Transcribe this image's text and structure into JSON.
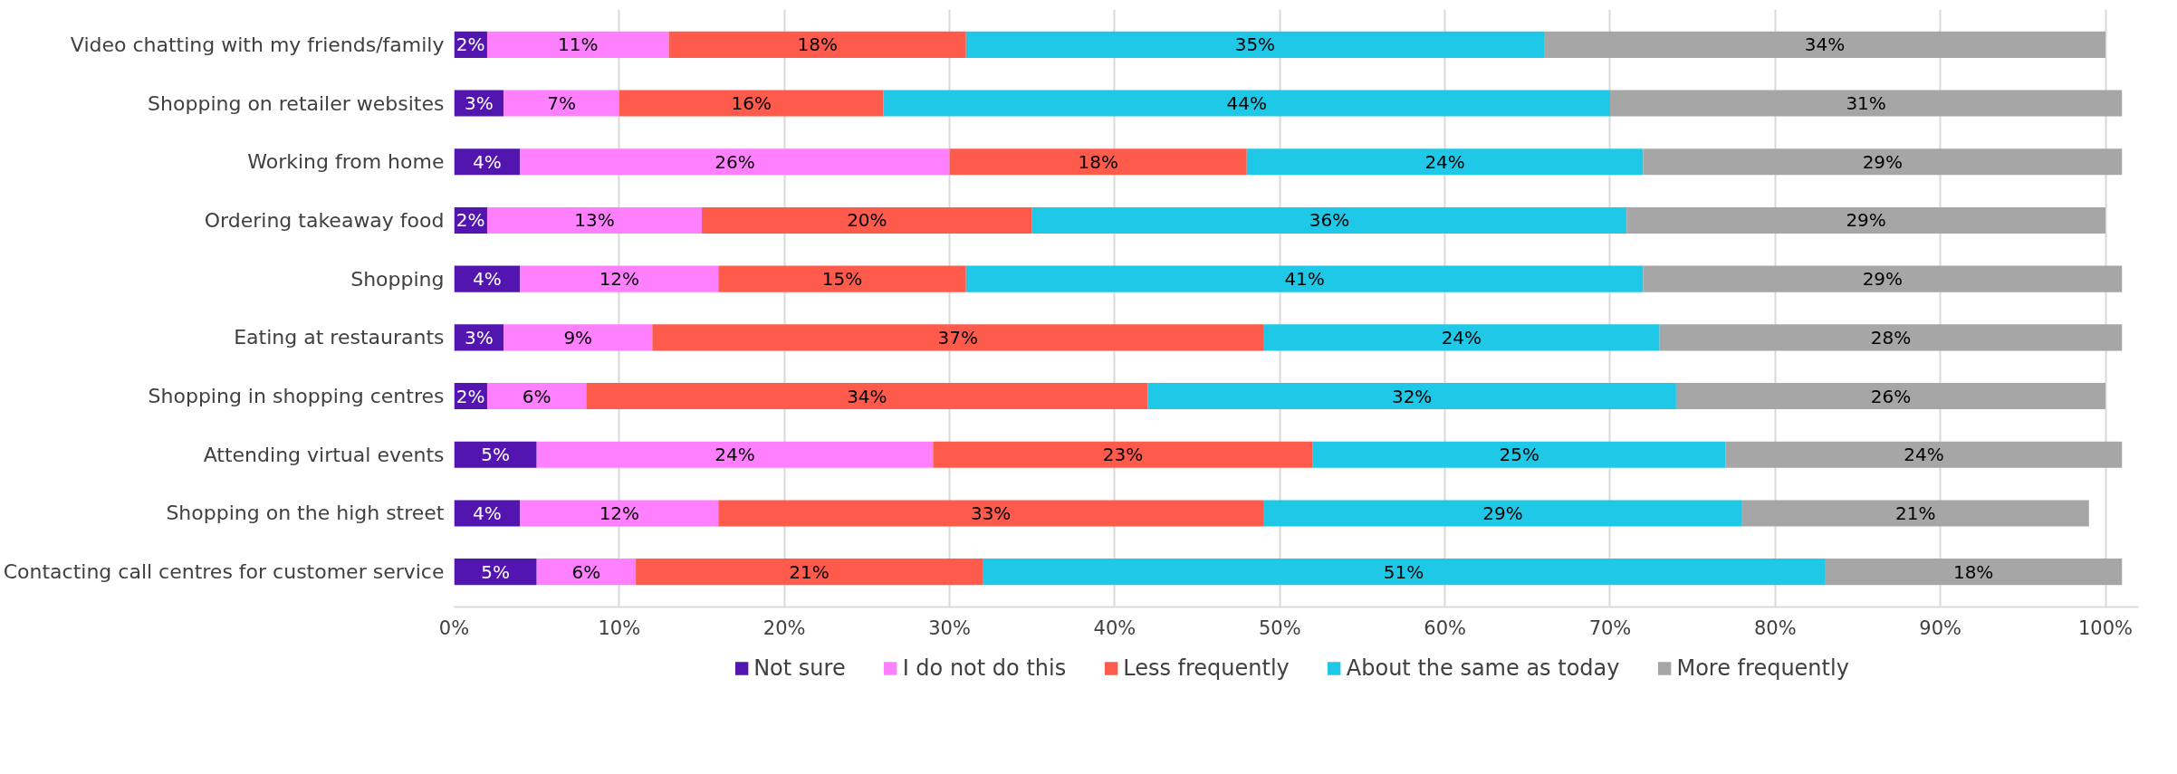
{
  "chart_data": {
    "type": "bar",
    "orientation": "horizontal",
    "stacked": true,
    "grid": "x",
    "legend": "bottom",
    "categories": [
      "Video chatting with my friends/family",
      "Shopping on retailer websites",
      "Working from home",
      "Ordering takeaway food",
      "Shopping",
      "Eating at restaurants",
      "Shopping in shopping centres",
      "Attending virtual events",
      "Shopping on the high street",
      "Contacting call centres for customer service"
    ],
    "series": [
      {
        "name": "Not sure",
        "color": "#5215b0",
        "values": [
          2,
          3,
          4,
          2,
          4,
          3,
          2,
          5,
          4,
          5
        ],
        "value_labels": [
          "2%",
          "3%",
          "4%",
          "2%",
          "4%",
          "3%",
          "2%",
          "5%",
          "4%",
          "5%"
        ]
      },
      {
        "name": "I do not do this",
        "color": "#ff80ff",
        "values": [
          11,
          7,
          26,
          13,
          12,
          9,
          6,
          24,
          12,
          6
        ],
        "value_labels": [
          "11%",
          "7%",
          "26%",
          "13%",
          "12%",
          "9%",
          "6%",
          "24%",
          "12%",
          "6%"
        ]
      },
      {
        "name": "Less frequently",
        "color": "#ff5b4d",
        "values": [
          18,
          16,
          18,
          20,
          15,
          37,
          34,
          23,
          33,
          21
        ],
        "value_labels": [
          "18%",
          "16%",
          "18%",
          "20%",
          "15%",
          "37%",
          "34%",
          "23%",
          "33%",
          "21%"
        ]
      },
      {
        "name": "About the same as today",
        "color": "#1fc8e6",
        "values": [
          35,
          44,
          24,
          36,
          41,
          24,
          32,
          25,
          29,
          51
        ],
        "value_labels": [
          "35%",
          "44%",
          "24%",
          "36%",
          "41%",
          "24%",
          "32%",
          "25%",
          "29%",
          "51%"
        ]
      },
      {
        "name": "More frequently",
        "color": "#a6a6a6",
        "values": [
          34,
          31,
          29,
          29,
          29,
          28,
          26,
          24,
          21,
          18
        ],
        "value_labels": [
          "34%",
          "31%",
          "29%",
          "29%",
          "29%",
          "28%",
          "26%",
          "24%",
          "21%",
          "18%"
        ]
      }
    ],
    "xlim": [
      0,
      102
    ],
    "xticks": [
      {
        "value": 0,
        "label": "0%"
      },
      {
        "value": 10,
        "label": "10%"
      },
      {
        "value": 20,
        "label": "20%"
      },
      {
        "value": 30,
        "label": "30%"
      },
      {
        "value": 40,
        "label": "40%"
      },
      {
        "value": 50,
        "label": "50%"
      },
      {
        "value": 60,
        "label": "60%"
      },
      {
        "value": 70,
        "label": "70%"
      },
      {
        "value": 80,
        "label": "80%"
      },
      {
        "value": 90,
        "label": "90%"
      },
      {
        "value": 100,
        "label": "100%"
      }
    ]
  }
}
